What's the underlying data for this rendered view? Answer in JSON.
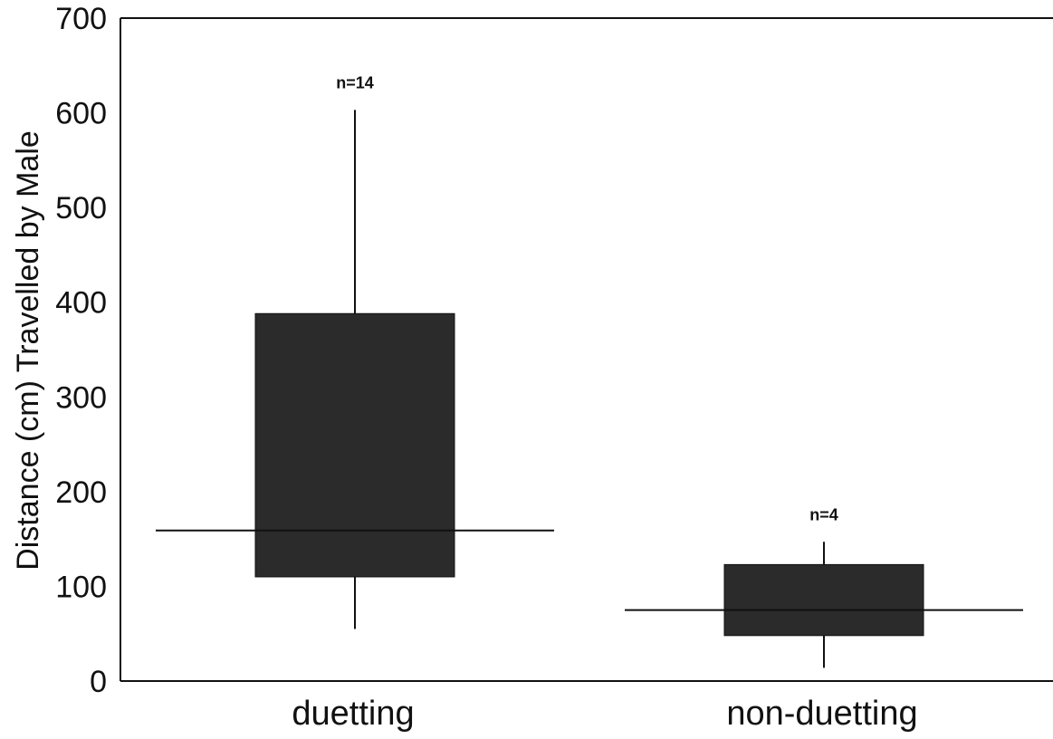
{
  "chart_data": {
    "type": "boxplot",
    "title": "",
    "xlabel": "",
    "ylabel": "Distance (cm) Travelled by Male",
    "ylim": [
      0,
      700
    ],
    "yticks": [
      "0",
      "100",
      "200",
      "300",
      "400",
      "500",
      "600",
      "700"
    ],
    "grid": false,
    "legend": "none",
    "box_color": "#2b2b2b",
    "line_color": "#111111",
    "categories": [
      "duetting",
      "non-duetting"
    ],
    "groups": [
      {
        "category": "duetting",
        "n_label": "n=14",
        "whisker_low": 55,
        "q1": 110,
        "median": 159,
        "q3": 388,
        "whisker_high": 603
      },
      {
        "category": "non-duetting",
        "n_label": "n=4",
        "whisker_low": 14,
        "q1": 48,
        "median": 75,
        "q3": 123,
        "whisker_high": 147
      }
    ]
  }
}
